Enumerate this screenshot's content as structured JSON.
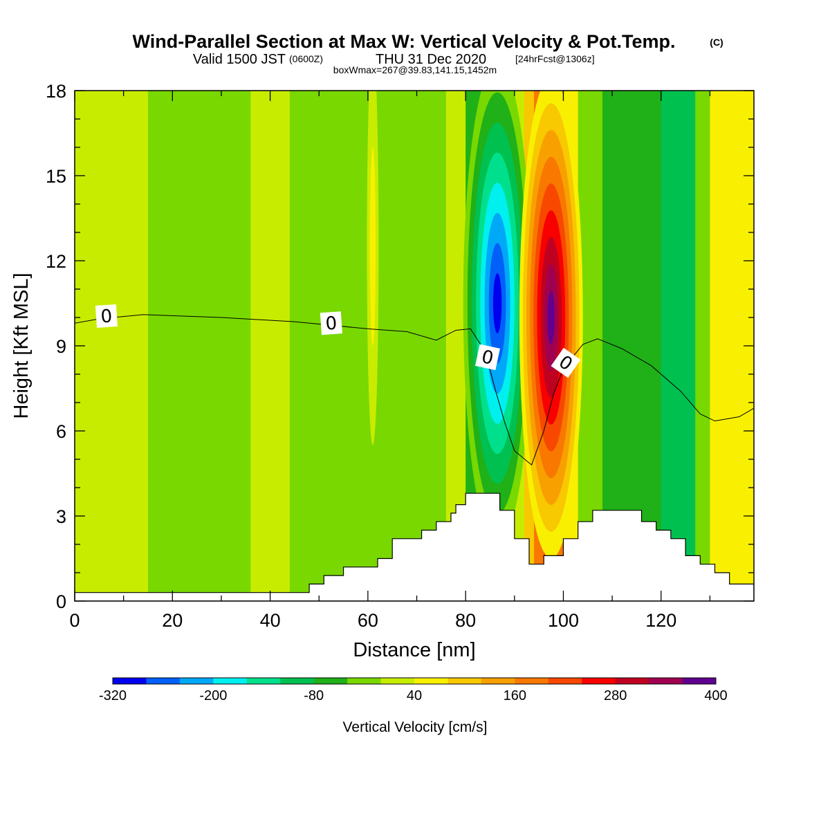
{
  "header": {
    "title": "Wind-Parallel Section at Max W: Vertical Velocity & Pot.Temp.",
    "title_mark": "(C)",
    "valid_prefix": "Valid 1500 JST",
    "valid_utc": "(0600Z)",
    "valid_date": "THU 31 Dec 2020",
    "forecast": "[24hrFcst@1306z]",
    "box_info": "boxWmax=267@39.83,141.15,1452m"
  },
  "chart_data": {
    "type": "heatmap",
    "xlabel": "Distance [nm]",
    "ylabel": "Height [Kft MSL]",
    "xlim": [
      0,
      139
    ],
    "ylim": [
      0,
      18
    ],
    "x_ticks": [
      "0",
      "20",
      "40",
      "60",
      "80",
      "100",
      "120"
    ],
    "y_ticks": [
      "0",
      "3",
      "6",
      "9",
      "12",
      "15",
      "18"
    ],
    "colorbar": {
      "label": "Vertical Velocity [cm/s]",
      "range": [
        -320,
        400
      ],
      "bin_width": 40,
      "tick_labels": [
        "-320",
        "-200",
        "-80",
        "40",
        "160",
        "280",
        "400"
      ],
      "colors": [
        "#0000f0",
        "#0060f8",
        "#00a8f8",
        "#00f0f0",
        "#00e08c",
        "#00c050",
        "#20b018",
        "#78d800",
        "#c8ec00",
        "#f8f000",
        "#f8c800",
        "#f8a000",
        "#f87800",
        "#f84800",
        "#f80000",
        "#c00020",
        "#a00050",
        "#600090"
      ]
    },
    "background_bins": [
      {
        "x_start": 0,
        "x_end": 15,
        "value_bin": 8
      },
      {
        "x_start": 15,
        "x_end": 36,
        "value_bin": 7
      },
      {
        "x_start": 36,
        "x_end": 44,
        "value_bin": 8
      },
      {
        "x_start": 44,
        "x_end": 64,
        "value_bin": 7
      },
      {
        "x_start": 64,
        "x_end": 76,
        "value_bin": 7
      },
      {
        "x_start": 76,
        "x_end": 80,
        "value_bin": 8
      },
      {
        "x_start": 80,
        "x_end": 84,
        "value_bin": 6
      },
      {
        "x_start": 84,
        "x_end": 86,
        "value_bin": 4
      },
      {
        "x_start": 86,
        "x_end": 88,
        "value_bin": 2
      },
      {
        "x_start": 88,
        "x_end": 90,
        "value_bin": 4
      },
      {
        "x_start": 90,
        "x_end": 92,
        "value_bin": 8
      },
      {
        "x_start": 92,
        "x_end": 94,
        "value_bin": 10
      },
      {
        "x_start": 94,
        "x_end": 96,
        "value_bin": 12
      },
      {
        "x_start": 96,
        "x_end": 98,
        "value_bin": 13
      },
      {
        "x_start": 98,
        "x_end": 100,
        "value_bin": 12
      },
      {
        "x_start": 100,
        "x_end": 103,
        "value_bin": 9
      },
      {
        "x_start": 103,
        "x_end": 108,
        "value_bin": 7
      },
      {
        "x_start": 108,
        "x_end": 120,
        "value_bin": 6
      },
      {
        "x_start": 120,
        "x_end": 127,
        "value_bin": 5
      },
      {
        "x_start": 127,
        "x_end": 130,
        "value_bin": 7
      },
      {
        "x_start": 130,
        "x_end": 139,
        "value_bin": 9
      }
    ],
    "plumes": [
      {
        "name": "downdraft",
        "cx": 86.5,
        "cy": 10.5,
        "rx": 7,
        "ry": 8.5,
        "bins": [
          7,
          6,
          5,
          4,
          3,
          2,
          1,
          0
        ],
        "min_value": -320
      },
      {
        "name": "updraft",
        "cx": 97.5,
        "cy": 10.0,
        "rx": 6.5,
        "ry": 8.5,
        "bins": [
          9,
          10,
          11,
          12,
          13,
          14,
          15,
          16,
          17
        ],
        "max_value": 400
      },
      {
        "name": "west-updraft-weak",
        "cx": 61,
        "cy": 12.5,
        "rx": 1.2,
        "ry": 7,
        "bins": [
          8,
          9
        ],
        "max_value": 60
      }
    ],
    "contour_zero": {
      "label": "0",
      "points": [
        [
          0,
          9.8
        ],
        [
          5,
          9.95
        ],
        [
          14,
          10.1
        ],
        [
          30,
          10.0
        ],
        [
          45,
          9.85
        ],
        [
          60,
          9.6
        ],
        [
          68,
          9.5
        ],
        [
          74,
          9.2
        ],
        [
          78,
          9.55
        ],
        [
          81,
          9.6
        ],
        [
          84,
          8.8
        ],
        [
          86,
          7.5
        ],
        [
          88,
          6.3
        ],
        [
          90,
          5.3
        ],
        [
          93.5,
          4.8
        ],
        [
          96,
          6.0
        ],
        [
          98,
          7.3
        ],
        [
          100,
          8.2
        ],
        [
          104,
          9.05
        ],
        [
          107,
          9.25
        ],
        [
          112,
          8.9
        ],
        [
          118,
          8.3
        ],
        [
          124,
          7.4
        ],
        [
          128,
          6.6
        ],
        [
          131,
          6.35
        ],
        [
          136,
          6.5
        ],
        [
          139,
          6.8
        ]
      ],
      "label_positions": [
        [
          6.5,
          10.05
        ],
        [
          52.5,
          9.8
        ],
        [
          84.5,
          8.6
        ],
        [
          100.5,
          8.4
        ]
      ]
    },
    "terrain": {
      "points": [
        [
          0,
          0.3
        ],
        [
          48,
          0.3
        ],
        [
          48,
          0.6
        ],
        [
          51,
          0.6
        ],
        [
          51,
          0.9
        ],
        [
          55,
          0.9
        ],
        [
          55,
          1.2
        ],
        [
          62,
          1.2
        ],
        [
          62,
          1.5
        ],
        [
          65,
          1.5
        ],
        [
          65,
          2.2
        ],
        [
          71,
          2.2
        ],
        [
          71,
          2.5
        ],
        [
          74,
          2.5
        ],
        [
          74,
          2.8
        ],
        [
          77,
          2.8
        ],
        [
          77,
          3.1
        ],
        [
          78,
          3.1
        ],
        [
          78,
          3.4
        ],
        [
          80,
          3.4
        ],
        [
          80,
          3.8
        ],
        [
          87,
          3.8
        ],
        [
          87,
          3.2
        ],
        [
          90,
          3.2
        ],
        [
          90,
          2.2
        ],
        [
          93,
          2.2
        ],
        [
          93,
          1.3
        ],
        [
          96,
          1.3
        ],
        [
          96,
          1.6
        ],
        [
          100,
          1.6
        ],
        [
          100,
          2.2
        ],
        [
          103,
          2.2
        ],
        [
          103,
          2.8
        ],
        [
          106,
          2.8
        ],
        [
          106,
          3.2
        ],
        [
          116,
          3.2
        ],
        [
          116,
          2.8
        ],
        [
          119,
          2.8
        ],
        [
          119,
          2.5
        ],
        [
          122,
          2.5
        ],
        [
          122,
          2.2
        ],
        [
          125,
          2.2
        ],
        [
          125,
          1.6
        ],
        [
          128,
          1.6
        ],
        [
          128,
          1.3
        ],
        [
          131,
          1.3
        ],
        [
          131,
          1.0
        ],
        [
          134,
          1.0
        ],
        [
          134,
          0.6
        ],
        [
          139,
          0.6
        ]
      ]
    }
  }
}
